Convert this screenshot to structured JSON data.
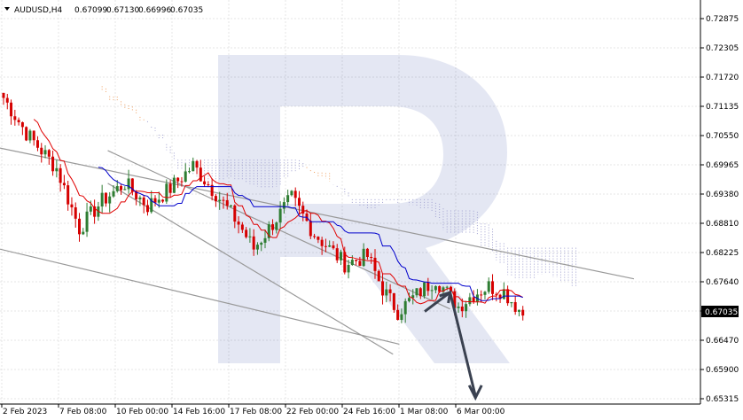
{
  "header": {
    "symbol": "AUDUSD,H4",
    "open": "0.67099",
    "high": "0.67130",
    "low": "0.66996",
    "close": "0.67035"
  },
  "current_price_label": "0.67035",
  "watermark_icon": "r-logo-icon",
  "colors": {
    "bull": "#2e7d32",
    "bear": "#d50000",
    "tenkan": "#e00000",
    "kijun": "#0000cc",
    "cloud": "#f0a060",
    "cloud_alt": "#a0a0d0",
    "trend": "#999999",
    "arrow": "#3a4150",
    "grid": "#e4e4e4"
  },
  "chart_data": {
    "type": "candlestick",
    "ylim": [
      0.65315,
      0.73
    ],
    "y_ticks": [
      "0.72875",
      "0.72305",
      "0.71720",
      "0.71135",
      "0.70550",
      "0.69965",
      "0.69380",
      "0.68810",
      "0.68225",
      "0.67640",
      "0.67035",
      "0.66470",
      "0.65900",
      "0.65315"
    ],
    "x_ticks": [
      "2 Feb 2023",
      "7 Feb 08:00",
      "10 Feb 00:00",
      "14 Feb 16:00",
      "17 Feb 08:00",
      "22 Feb 00:00",
      "24 Feb 16:00",
      "1 Mar 08:00",
      "6 Mar 00:00"
    ],
    "trend_lines": [
      {
        "name": "upper-channel",
        "from": [
          0.0,
          0.703
        ],
        "to": [
          1.0,
          0.677
        ]
      },
      {
        "name": "lower-channel",
        "from": [
          -0.17,
          0.688
        ],
        "to": [
          0.63,
          0.664
        ]
      },
      {
        "name": "inner-upper",
        "from": [
          0.17,
          0.7025
        ],
        "to": [
          0.71,
          0.671
        ]
      },
      {
        "name": "inner-lower",
        "from": [
          0.17,
          0.696
        ],
        "to": [
          0.62,
          0.662
        ]
      }
    ],
    "forecast_arrow": [
      [
        0.67,
        0.6705
      ],
      [
        0.71,
        0.6743
      ],
      [
        0.75,
        0.6537
      ]
    ]
  }
}
